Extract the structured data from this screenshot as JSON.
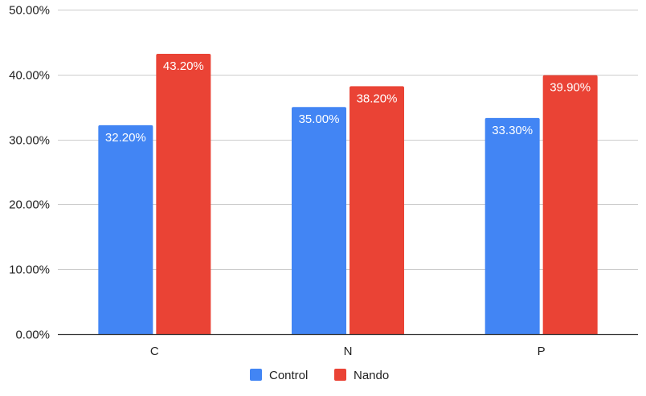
{
  "chart_data": {
    "type": "bar",
    "categories": [
      "C",
      "N",
      "P"
    ],
    "series": [
      {
        "name": "Control",
        "color": "#4285F4",
        "values": [
          32.2,
          35.0,
          33.3
        ],
        "labels": [
          "32.20%",
          "35.00%",
          "33.30%"
        ]
      },
      {
        "name": "Nando",
        "color": "#EA4335",
        "values": [
          43.2,
          38.2,
          39.9
        ],
        "labels": [
          "43.20%",
          "38.20%",
          "39.90%"
        ]
      }
    ],
    "ylim": [
      0,
      50
    ],
    "yticks": [
      0,
      10,
      20,
      30,
      40,
      50
    ],
    "ytick_labels": [
      "0.00%",
      "10.00%",
      "20.00%",
      "30.00%",
      "40.00%",
      "50.00%"
    ],
    "title": "",
    "xlabel": "",
    "ylabel": "",
    "grid": true,
    "legend": "bottom-center"
  }
}
